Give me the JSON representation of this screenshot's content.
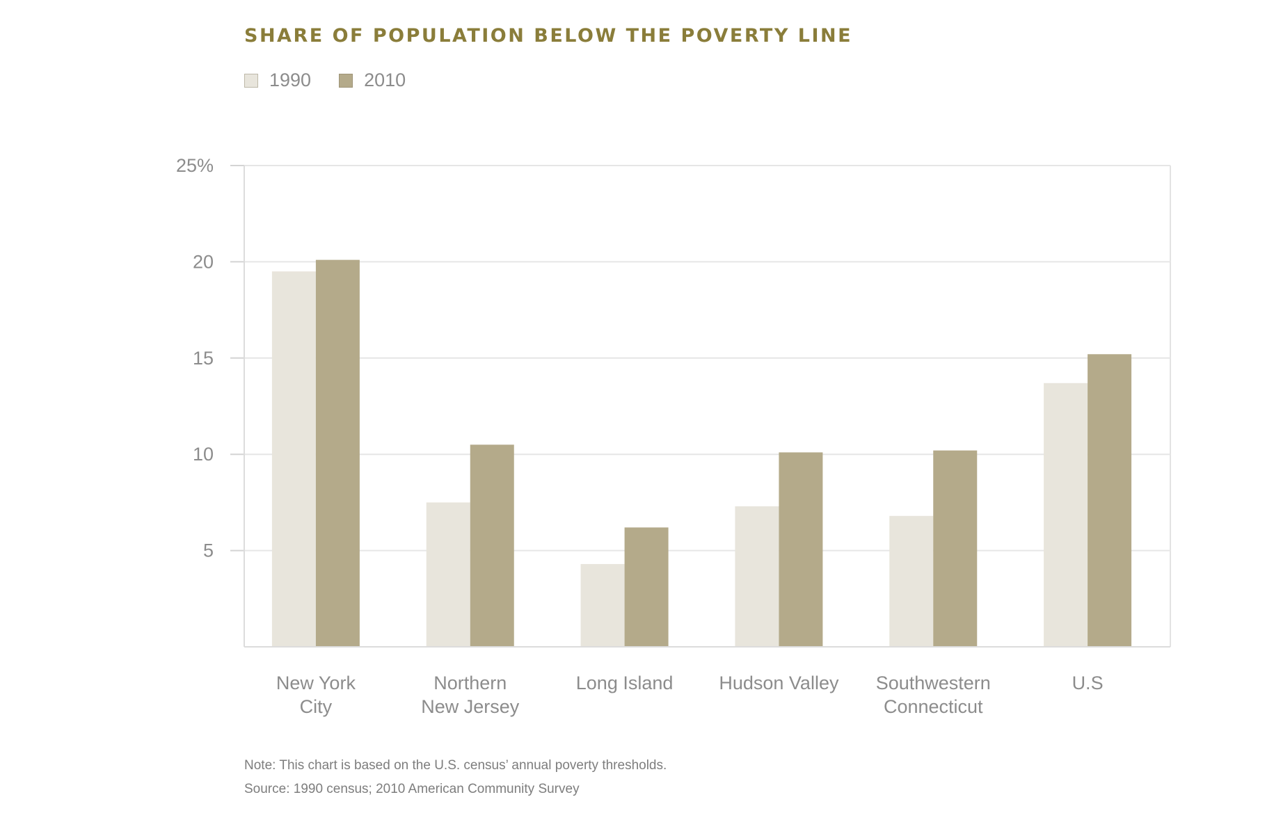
{
  "chart_data": {
    "type": "bar",
    "title": "SHARE OF POPULATION BELOW THE POVERTY LINE",
    "categories": [
      [
        "New York",
        "City"
      ],
      [
        "Northern",
        "New Jersey"
      ],
      [
        "Long Island"
      ],
      [
        "Hudson Valley"
      ],
      [
        "Southwestern",
        "Connecticut"
      ],
      [
        "U.S"
      ]
    ],
    "series": [
      {
        "name": "1990",
        "color": "#e8e5dc",
        "values": [
          19.5,
          7.5,
          4.3,
          7.3,
          6.8,
          13.7
        ]
      },
      {
        "name": "2010",
        "color": "#b4aa8a",
        "values": [
          20.1,
          10.5,
          6.2,
          10.1,
          10.2,
          15.2
        ]
      }
    ],
    "ylim": [
      0,
      25
    ],
    "yticks": [
      5,
      10,
      15,
      20,
      25
    ],
    "ytick_labels": [
      "5",
      "10",
      "15",
      "20",
      "25%"
    ],
    "xlabel": "",
    "ylabel": "",
    "grid": true,
    "legend_position": "top-left"
  },
  "notes": {
    "note": "Note: This chart is based on the U.S. census’ annual poverty thresholds.",
    "source": "Source: 1990 census; 2010 American Community Survey"
  }
}
